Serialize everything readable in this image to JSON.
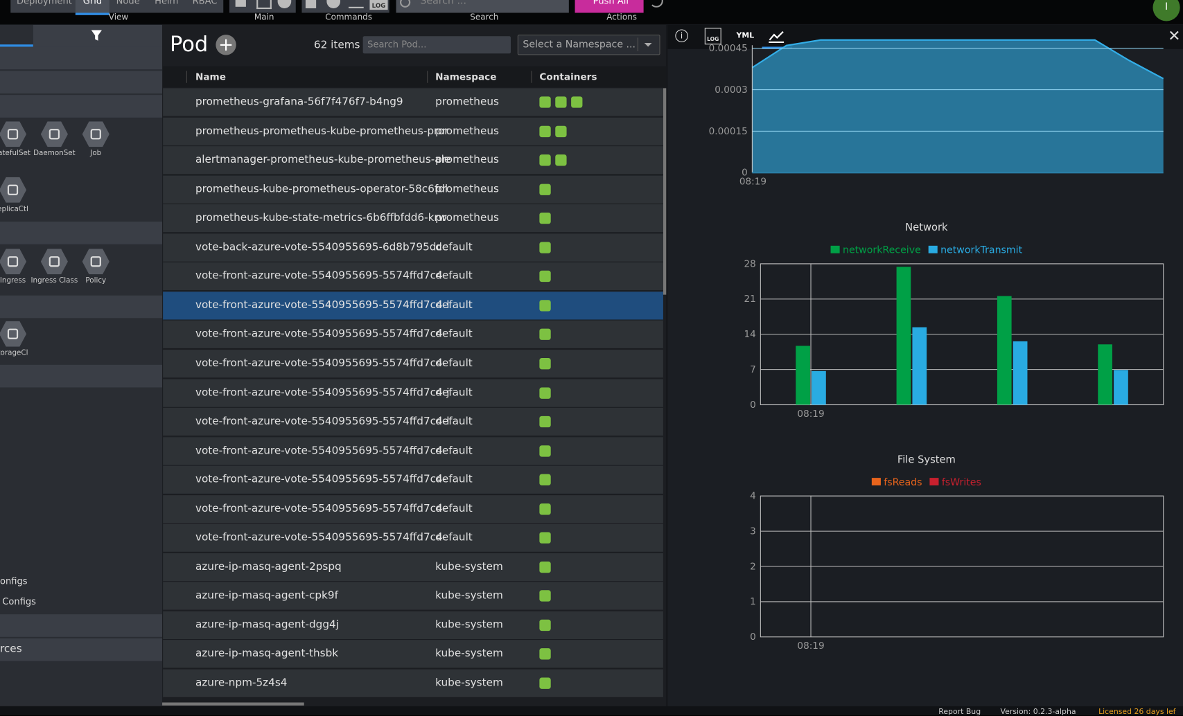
{
  "toolbar": {
    "view_buttons": [
      "Deployment",
      "Grid",
      "Node",
      "Helm",
      "RBAC"
    ],
    "groups": [
      "View",
      "Main",
      "Commands",
      "Search",
      "Actions"
    ],
    "log": "LOG",
    "search_placeholder": "Search ...",
    "push": "Push All",
    "avatar": "I"
  },
  "sidebar": {
    "icons": [
      "tatefulSet",
      "DaemonSet",
      "Job",
      "eplicaCtl",
      "Ingress",
      "Ingress Class",
      "Policy",
      "torageCl"
    ],
    "links": [
      "onfigs",
      "Configs"
    ],
    "section": "rces"
  },
  "pods": {
    "title": "Pod",
    "count": "62 items",
    "search_placeholder": "Search Pod...",
    "namespace_select": "Select a Namespace ...",
    "columns": [
      "Name",
      "Namespace",
      "Containers"
    ],
    "rows": [
      {
        "name": "prometheus-grafana-56f7f476f7-b4ng9",
        "namespace": "prometheus",
        "containers": 3
      },
      {
        "name": "prometheus-prometheus-kube-prometheus-pror",
        "namespace": "prometheus",
        "containers": 2
      },
      {
        "name": "alertmanager-prometheus-kube-prometheus-ale",
        "namespace": "prometheus",
        "containers": 2
      },
      {
        "name": "prometheus-kube-prometheus-operator-58c6fdl",
        "namespace": "prometheus",
        "containers": 1
      },
      {
        "name": "prometheus-kube-state-metrics-6b6ffbfdd6-krw",
        "namespace": "prometheus",
        "containers": 1
      },
      {
        "name": "vote-back-azure-vote-5540955695-6d8b795dcc",
        "namespace": "default",
        "containers": 1
      },
      {
        "name": "vote-front-azure-vote-5540955695-5574ffd7c4-",
        "namespace": "default",
        "containers": 1
      },
      {
        "name": "vote-front-azure-vote-5540955695-5574ffd7c4-l",
        "namespace": "default",
        "containers": 1,
        "selected": true
      },
      {
        "name": "vote-front-azure-vote-5540955695-5574ffd7c4-",
        "namespace": "default",
        "containers": 1
      },
      {
        "name": "vote-front-azure-vote-5540955695-5574ffd7c4-",
        "namespace": "default",
        "containers": 1
      },
      {
        "name": "vote-front-azure-vote-5540955695-5574ffd7c4-j",
        "namespace": "default",
        "containers": 1
      },
      {
        "name": "vote-front-azure-vote-5540955695-5574ffd7c4-l",
        "namespace": "default",
        "containers": 1
      },
      {
        "name": "vote-front-azure-vote-5540955695-5574ffd7c4-",
        "namespace": "default",
        "containers": 1
      },
      {
        "name": "vote-front-azure-vote-5540955695-5574ffd7c4-",
        "namespace": "default",
        "containers": 1
      },
      {
        "name": "vote-front-azure-vote-5540955695-5574ffd7c4-",
        "namespace": "default",
        "containers": 1
      },
      {
        "name": "vote-front-azure-vote-5540955695-5574ffd7c4-",
        "namespace": "default",
        "containers": 1
      },
      {
        "name": "azure-ip-masq-agent-2pspq",
        "namespace": "kube-system",
        "containers": 1
      },
      {
        "name": "azure-ip-masq-agent-cpk9f",
        "namespace": "kube-system",
        "containers": 1
      },
      {
        "name": "azure-ip-masq-agent-dgg4j",
        "namespace": "kube-system",
        "containers": 1
      },
      {
        "name": "azure-ip-masq-agent-thsbk",
        "namespace": "kube-system",
        "containers": 1
      },
      {
        "name": "azure-npm-5z4s4",
        "namespace": "kube-system",
        "containers": 1
      }
    ]
  },
  "details": {
    "log": "LOG",
    "yml": "YML"
  },
  "charts": [
    {
      "type": "area",
      "x": [
        0,
        1,
        2,
        3,
        4,
        5,
        6,
        7,
        8,
        9,
        10,
        11,
        12
      ],
      "values": [
        0.00038,
        0.00046,
        0.00048,
        0.00048,
        0.00048,
        0.00048,
        0.00048,
        0.00048,
        0.00048,
        0.00048,
        0.00048,
        0.000406,
        0.00034
      ],
      "color": "#33aee8",
      "xlim": [
        0,
        12
      ],
      "xticks": [
        {
          "value": 0,
          "label": "08:19"
        }
      ],
      "ylim": [
        0,
        0.0005
      ],
      "yticks": [
        0,
        0.00015,
        0.0003,
        0.00045
      ],
      "grid": true
    },
    {
      "type": "bar",
      "title": "Network",
      "categories": [
        "08:19",
        null,
        null,
        null
      ],
      "series": [
        {
          "name": "networkReceive",
          "color": "#00a046",
          "values": [
            11.7,
            27.4,
            21.6,
            12.0
          ]
        },
        {
          "name": "networkTransmit",
          "color": "#29abe2",
          "values": [
            6.7,
            15.4,
            12.6,
            6.9
          ]
        }
      ],
      "ylim": [
        0,
        28
      ],
      "yticks": [
        0,
        7,
        14,
        21,
        28
      ],
      "grid": true
    },
    {
      "type": "bar",
      "title": "File System",
      "categories": [
        "08:19",
        null,
        null,
        null
      ],
      "series": [
        {
          "name": "fsReads",
          "color": "#e8641c",
          "values": [
            null,
            null,
            null,
            null
          ]
        },
        {
          "name": "fsWrites",
          "color": "#c8202e",
          "values": [
            null,
            null,
            null,
            null
          ]
        }
      ],
      "ylim": [
        0,
        4
      ],
      "yticks": [
        0,
        1,
        2,
        3,
        4
      ],
      "grid": true
    }
  ],
  "footer": {
    "report": "Report Bug",
    "version": "Version: 0.2.3-alpha",
    "license": "Licensed 26 days lef"
  }
}
